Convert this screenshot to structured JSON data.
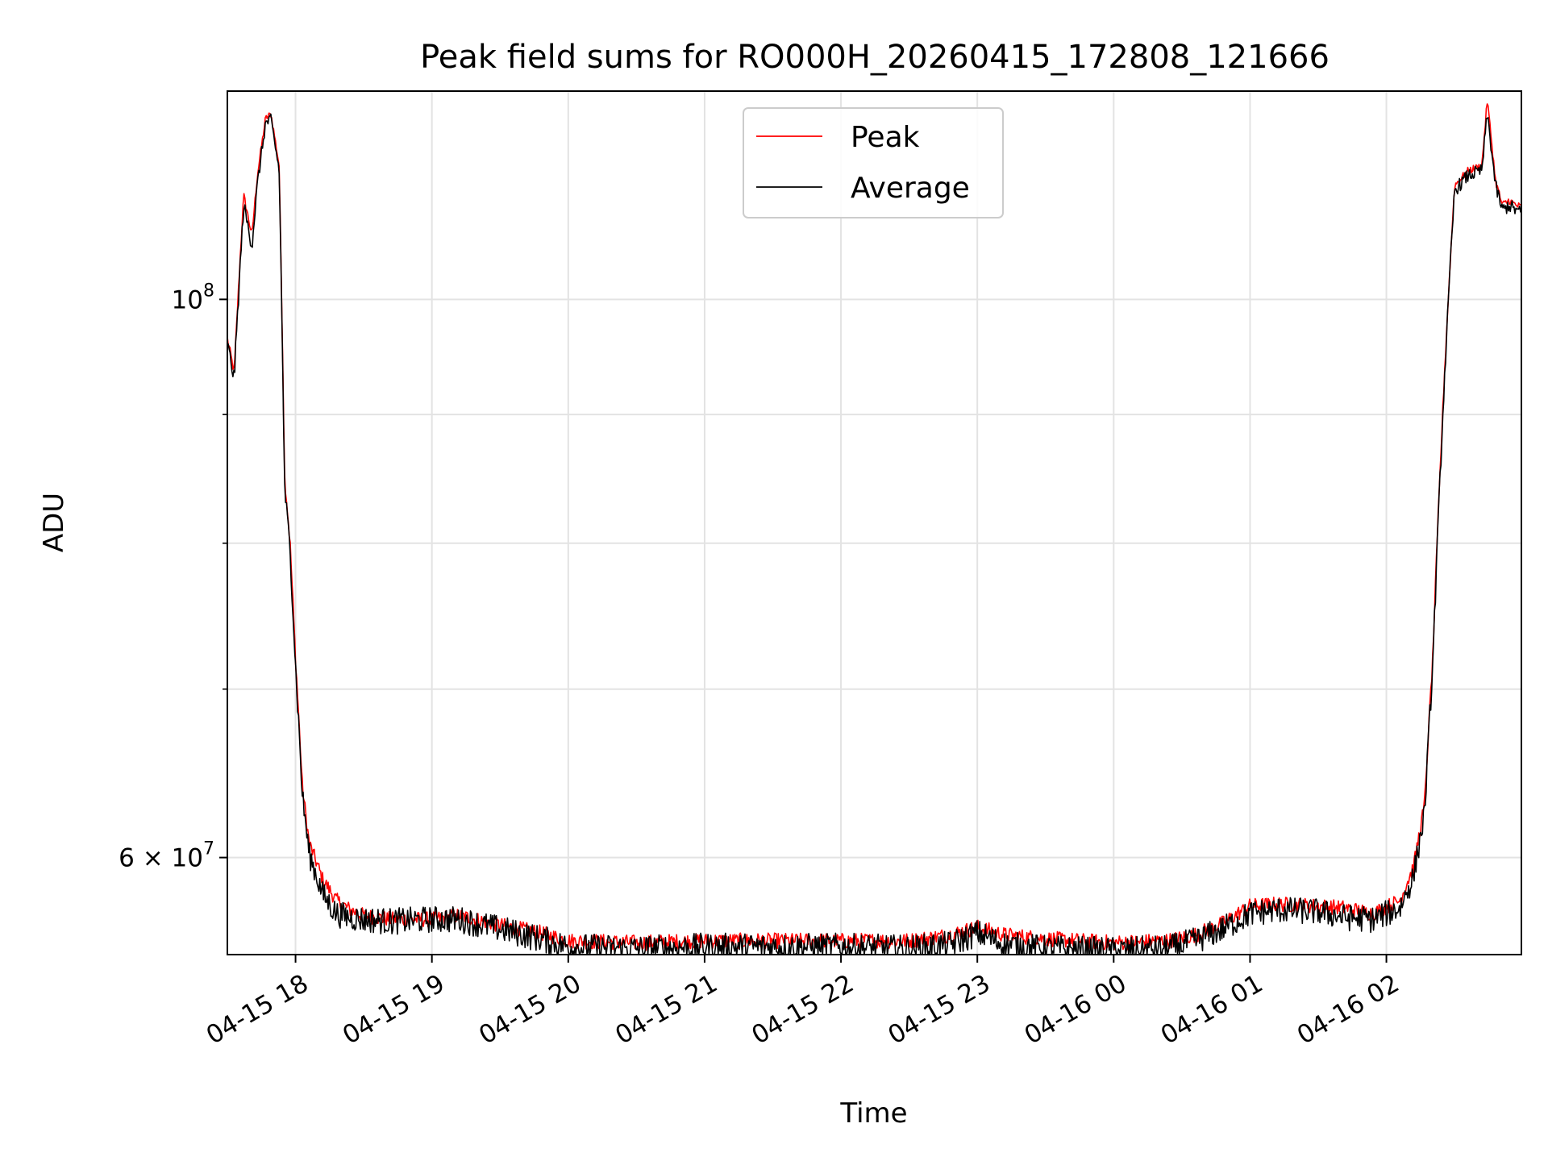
{
  "chart_data": {
    "type": "line",
    "title": "Peak field sums for RO000H_20260415_172808_121666",
    "xlabel": "Time",
    "ylabel": "ADU",
    "yscale": "log",
    "grid": true,
    "legend_location": "upper center",
    "xlim": [
      17.5,
      26.99
    ],
    "ylim": [
      54900000,
      121000000
    ],
    "x_ticks": [
      {
        "value": 18,
        "label": "04-15 18"
      },
      {
        "value": 19,
        "label": "04-15 19"
      },
      {
        "value": 20,
        "label": "04-15 20"
      },
      {
        "value": 21,
        "label": "04-15 21"
      },
      {
        "value": 22,
        "label": "04-15 22"
      },
      {
        "value": 23,
        "label": "04-15 23"
      },
      {
        "value": 24,
        "label": "04-16 00"
      },
      {
        "value": 25,
        "label": "04-16 01"
      },
      {
        "value": 26,
        "label": "04-16 02"
      }
    ],
    "y_ticks_major": [
      {
        "value": 60000000,
        "mantissa": "6",
        "times": "×",
        "base": "10",
        "exp": "7"
      },
      {
        "value": 100000000,
        "mantissa": "",
        "times": "",
        "base": "10",
        "exp": "8"
      }
    ],
    "y_ticks_minor": [
      70000000,
      80000000,
      90000000
    ],
    "series": [
      {
        "name": "Peak",
        "color": "#ff0000",
        "noise_amplitude": 400000,
        "x": [
          17.5,
          17.55,
          17.62,
          17.68,
          17.72,
          17.78,
          17.82,
          17.88,
          17.92,
          17.96,
          18.0,
          18.05,
          18.1,
          18.2,
          18.3,
          18.4,
          18.5,
          18.7,
          19.0,
          19.2,
          19.5,
          19.8,
          20.0,
          20.5,
          21.0,
          21.5,
          22.0,
          22.5,
          22.8,
          23.0,
          23.2,
          23.5,
          24.0,
          24.4,
          24.6,
          24.8,
          25.0,
          25.2,
          25.5,
          25.7,
          25.9,
          26.1,
          26.2,
          26.28,
          26.34,
          26.42,
          26.5,
          26.6,
          26.7,
          26.74,
          26.8,
          26.85,
          26.9,
          26.95,
          26.99
        ],
        "y": [
          96500000,
          93500000,
          110000000,
          106000000,
          112000000,
          118000000,
          118500000,
          113000000,
          85000000,
          80000000,
          72000000,
          64000000,
          60800000,
          58800000,
          57700000,
          57200000,
          56900000,
          56700000,
          56700000,
          56900000,
          56400000,
          56000000,
          55600000,
          55500000,
          55600000,
          55600000,
          55600000,
          55600000,
          55900000,
          56300000,
          55900000,
          55700000,
          55500000,
          55600000,
          55900000,
          56500000,
          57400000,
          57500000,
          57400000,
          57300000,
          57000000,
          57700000,
          59500000,
          63000000,
          72000000,
          92000000,
          111000000,
          112500000,
          113000000,
          120000000,
          111500000,
          109000000,
          109500000,
          109000000,
          108800000
        ]
      },
      {
        "name": "Average",
        "color": "#000000",
        "noise_amplitude": 700000,
        "x": [
          17.5,
          17.55,
          17.62,
          17.68,
          17.72,
          17.78,
          17.82,
          17.88,
          17.92,
          17.96,
          18.0,
          18.05,
          18.1,
          18.2,
          18.3,
          18.4,
          18.5,
          18.7,
          19.0,
          19.2,
          19.5,
          19.8,
          20.0,
          20.5,
          21.0,
          21.5,
          22.0,
          22.5,
          22.8,
          23.0,
          23.2,
          23.5,
          24.0,
          24.4,
          24.6,
          24.8,
          25.0,
          25.2,
          25.5,
          25.7,
          25.9,
          26.1,
          26.2,
          26.28,
          26.34,
          26.42,
          26.5,
          26.6,
          26.7,
          26.74,
          26.8,
          26.85,
          26.9,
          26.95,
          26.99
        ],
        "y": [
          96000000,
          93000000,
          109000000,
          105000000,
          111000000,
          117500000,
          117800000,
          112500000,
          84000000,
          79500000,
          71500000,
          63500000,
          60200000,
          58000000,
          57000000,
          56800000,
          56700000,
          56600000,
          56700000,
          56700000,
          56200000,
          55700000,
          55300000,
          55200000,
          55300000,
          55300000,
          55300000,
          55200000,
          55400000,
          56000000,
          55400000,
          55200000,
          55100000,
          55200000,
          55600000,
          56200000,
          57000000,
          57200000,
          57100000,
          56800000,
          56700000,
          57300000,
          59000000,
          62500000,
          71500000,
          91500000,
          110500000,
          112000000,
          112500000,
          118500000,
          111000000,
          108500000,
          109000000,
          108500000,
          108200000
        ]
      }
    ]
  }
}
